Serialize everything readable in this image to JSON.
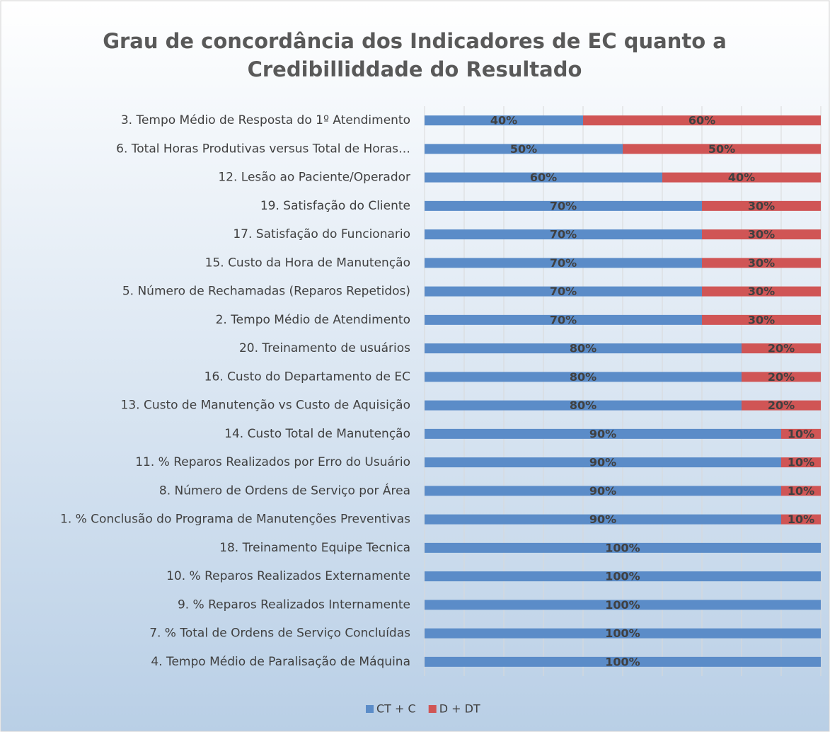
{
  "chart_data": {
    "type": "stacked_barh",
    "title": [
      "Grau de concordância dos Indicadores de EC quanto a",
      "Credibilliddade do Resultado"
    ],
    "categories": [
      "3. Tempo Médio de Resposta do 1º Atendimento",
      "6. Total Horas Produtivas versus Total de Horas…",
      "12. Lesão ao Paciente/Operador",
      "19. Satisfação do Cliente",
      "17. Satisfação do Funcionario",
      "15. Custo da Hora de Manutenção",
      "5. Número de Rechamadas (Reparos Repetidos)",
      "2. Tempo Médio de Atendimento",
      "20. Treinamento de usuários",
      "16. Custo do Departamento de EC",
      "13. Custo de Manutenção vs Custo de Aquisição",
      "14. Custo Total de Manutenção",
      "11. % Reparos Realizados por Erro do Usuário",
      "8. Número de Ordens de Serviço por Área",
      "1. % Conclusão do Programa de Manutenções Preventivas",
      "18. Treinamento Equipe Tecnica",
      "10. % Reparos Realizados Externamente",
      "9. % Reparos Realizados Internamente",
      "7. % Total de Ordens de Serviço Concluídas",
      "4. Tempo Médio de Paralisação de Máquina"
    ],
    "series": [
      {
        "name": "CT + C",
        "color": "#5b8cc8",
        "values": [
          40,
          50,
          60,
          70,
          70,
          70,
          70,
          70,
          80,
          80,
          80,
          90,
          90,
          90,
          90,
          100,
          100,
          100,
          100,
          100
        ],
        "value_labels": [
          "40%",
          "50%",
          "60%",
          "70%",
          "70%",
          "70%",
          "70%",
          "70%",
          "80%",
          "80%",
          "80%",
          "90%",
          "90%",
          "90%",
          "90%",
          "100%",
          "100%",
          "100%",
          "100%",
          "100%"
        ]
      },
      {
        "name": "D + DT",
        "color": "#d05555",
        "values": [
          60,
          50,
          40,
          30,
          30,
          30,
          30,
          30,
          20,
          20,
          20,
          10,
          10,
          10,
          10,
          0,
          0,
          0,
          0,
          0
        ],
        "value_labels": [
          "60%",
          "50%",
          "40%",
          "30%",
          "30%",
          "30%",
          "30%",
          "30%",
          "20%",
          "20%",
          "20%",
          "10%",
          "10%",
          "10%",
          "10%",
          null,
          null,
          null,
          null,
          null
        ]
      }
    ],
    "xlim": [
      0,
      100
    ],
    "xticks": [
      0,
      10,
      20,
      30,
      40,
      50,
      60,
      70,
      80,
      90,
      100
    ],
    "grid": true,
    "legend": "bottom"
  }
}
